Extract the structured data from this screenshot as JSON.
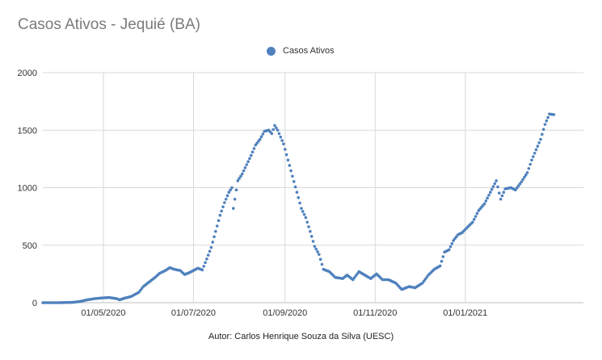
{
  "colors": {
    "series": "#4f81bd",
    "grid": "#d9d9d9",
    "axis": "#bfbfbf",
    "title": "#7b7b7b"
  },
  "credit": "Autor: Carlos Henrique Souza da Silva  (UESC)",
  "chart_data": {
    "type": "scatter",
    "title": "Casos Ativos - Jequié (BA)",
    "xlabel": "",
    "ylabel": "",
    "legend": {
      "position": "top",
      "entries": [
        "Casos Ativos"
      ]
    },
    "grid": true,
    "ylim": [
      0,
      2000
    ],
    "xlim": [
      "2020-03-21",
      "2021-03-22"
    ],
    "x_ticks": [
      "2020-05-01",
      "2020-07-01",
      "2020-09-01",
      "2020-11-01",
      "2021-01-01"
    ],
    "x_tick_labels": [
      "01/05/2020",
      "01/07/2020",
      "01/09/2020",
      "01/11/2020",
      "01/01/2021"
    ],
    "y_ticks": [
      0,
      500,
      1000,
      1500,
      2000
    ],
    "series": [
      {
        "name": "Casos Ativos",
        "points": [
          [
            "2020-03-21",
            0
          ],
          [
            "2020-04-01",
            0
          ],
          [
            "2020-04-10",
            3
          ],
          [
            "2020-04-15",
            10
          ],
          [
            "2020-04-20",
            25
          ],
          [
            "2020-04-25",
            35
          ],
          [
            "2020-05-01",
            42
          ],
          [
            "2020-05-05",
            45
          ],
          [
            "2020-05-10",
            35
          ],
          [
            "2020-05-12",
            25
          ],
          [
            "2020-05-15",
            38
          ],
          [
            "2020-05-20",
            55
          ],
          [
            "2020-05-25",
            90
          ],
          [
            "2020-05-28",
            140
          ],
          [
            "2020-06-01",
            180
          ],
          [
            "2020-06-05",
            220
          ],
          [
            "2020-06-08",
            255
          ],
          [
            "2020-06-12",
            280
          ],
          [
            "2020-06-15",
            305
          ],
          [
            "2020-06-18",
            290
          ],
          [
            "2020-06-22",
            280
          ],
          [
            "2020-06-25",
            245
          ],
          [
            "2020-06-28",
            260
          ],
          [
            "2020-07-01",
            280
          ],
          [
            "2020-07-04",
            300
          ],
          [
            "2020-07-07",
            285
          ],
          [
            "2020-07-10",
            380
          ],
          [
            "2020-07-13",
            480
          ],
          [
            "2020-07-16",
            620
          ],
          [
            "2020-07-19",
            760
          ],
          [
            "2020-07-22",
            870
          ],
          [
            "2020-07-25",
            960
          ],
          [
            "2020-07-27",
            1000
          ],
          [
            "2020-07-28",
            820
          ],
          [
            "2020-07-31",
            1060
          ],
          [
            "2020-08-03",
            1120
          ],
          [
            "2020-08-06",
            1200
          ],
          [
            "2020-08-09",
            1280
          ],
          [
            "2020-08-12",
            1370
          ],
          [
            "2020-08-15",
            1420
          ],
          [
            "2020-08-18",
            1490
          ],
          [
            "2020-08-21",
            1500
          ],
          [
            "2020-08-23",
            1470
          ],
          [
            "2020-08-25",
            1540
          ],
          [
            "2020-08-27",
            1500
          ],
          [
            "2020-08-29",
            1440
          ],
          [
            "2020-08-31",
            1380
          ],
          [
            "2020-09-03",
            1240
          ],
          [
            "2020-09-06",
            1100
          ],
          [
            "2020-09-09",
            960
          ],
          [
            "2020-09-12",
            820
          ],
          [
            "2020-09-15",
            740
          ],
          [
            "2020-09-18",
            620
          ],
          [
            "2020-09-21",
            490
          ],
          [
            "2020-09-24",
            420
          ],
          [
            "2020-09-27",
            290
          ],
          [
            "2020-10-01",
            270
          ],
          [
            "2020-10-05",
            220
          ],
          [
            "2020-10-10",
            210
          ],
          [
            "2020-10-13",
            240
          ],
          [
            "2020-10-17",
            200
          ],
          [
            "2020-10-21",
            270
          ],
          [
            "2020-10-25",
            240
          ],
          [
            "2020-10-29",
            210
          ],
          [
            "2020-11-02",
            250
          ],
          [
            "2020-11-06",
            200
          ],
          [
            "2020-11-10",
            200
          ],
          [
            "2020-11-15",
            170
          ],
          [
            "2020-11-19",
            115
          ],
          [
            "2020-11-24",
            140
          ],
          [
            "2020-11-28",
            130
          ],
          [
            "2020-12-03",
            170
          ],
          [
            "2020-12-07",
            240
          ],
          [
            "2020-12-11",
            290
          ],
          [
            "2020-12-15",
            320
          ],
          [
            "2020-12-18",
            440
          ],
          [
            "2020-12-21",
            460
          ],
          [
            "2020-12-24",
            540
          ],
          [
            "2020-12-27",
            590
          ],
          [
            "2020-12-30",
            610
          ],
          [
            "2021-01-02",
            650
          ],
          [
            "2021-01-06",
            700
          ],
          [
            "2021-01-10",
            800
          ],
          [
            "2021-01-14",
            860
          ],
          [
            "2021-01-18",
            960
          ],
          [
            "2021-01-22",
            1060
          ],
          [
            "2021-01-25",
            900
          ],
          [
            "2021-01-28",
            990
          ],
          [
            "2021-02-01",
            1000
          ],
          [
            "2021-02-04",
            980
          ],
          [
            "2021-02-08",
            1050
          ],
          [
            "2021-02-12",
            1130
          ],
          [
            "2021-02-15",
            1240
          ],
          [
            "2021-02-18",
            1330
          ],
          [
            "2021-02-21",
            1420
          ],
          [
            "2021-02-24",
            1550
          ],
          [
            "2021-02-27",
            1640
          ],
          [
            "2021-03-02",
            1635
          ]
        ]
      }
    ]
  }
}
